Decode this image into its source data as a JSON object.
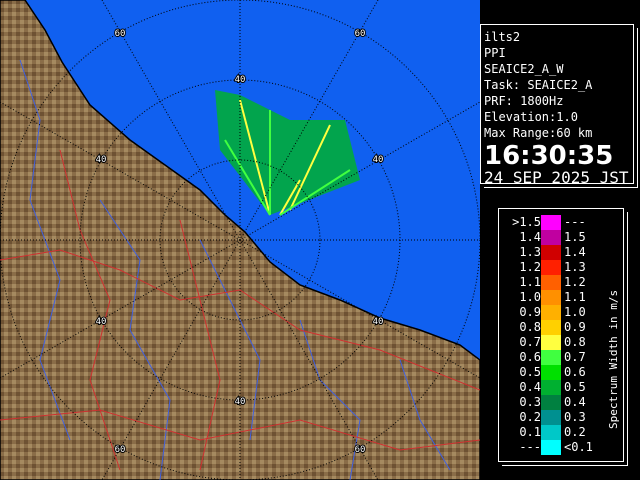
{
  "info": {
    "site": "ilts2",
    "mode": "PPI",
    "scan": "SEAICE2_A_W",
    "task": "Task: SEAICE2_A",
    "prf": "PRF: 1800Hz",
    "elevation": "Elevation:1.0",
    "max_range": "Max Range:60 km",
    "time": "16:30:35",
    "date": "24 SEP 2025 JST"
  },
  "map": {
    "ring_labels": {
      "r40": "40",
      "r60": "60"
    },
    "colors": {
      "sea": "#1060f0",
      "land": "#8a6d48",
      "coast": "#000000",
      "rivers": "#4060e0",
      "roads": "#d03030"
    }
  },
  "legend": {
    "unit": "Spectrum Width in m/s",
    "rows": [
      {
        "left": ">1.5",
        "right": "---",
        "color": "#ff00ff"
      },
      {
        "left": "1.4",
        "right": "1.5",
        "color": "#c000a0"
      },
      {
        "left": "1.3",
        "right": "1.4",
        "color": "#d00000"
      },
      {
        "left": "1.2",
        "right": "1.3",
        "color": "#ff2000"
      },
      {
        "left": "1.1",
        "right": "1.2",
        "color": "#ff6000"
      },
      {
        "left": "1.0",
        "right": "1.1",
        "color": "#ff9000"
      },
      {
        "left": "0.9",
        "right": "1.0",
        "color": "#ffb000"
      },
      {
        "left": "0.8",
        "right": "0.9",
        "color": "#ffd000"
      },
      {
        "left": "0.7",
        "right": "0.8",
        "color": "#ffff40"
      },
      {
        "left": "0.6",
        "right": "0.7",
        "color": "#40ff40"
      },
      {
        "left": "0.5",
        "right": "0.6",
        "color": "#00e000"
      },
      {
        "left": "0.4",
        "right": "0.5",
        "color": "#00b030"
      },
      {
        "left": "0.3",
        "right": "0.4",
        "color": "#008040"
      },
      {
        "left": "0.2",
        "right": "0.3",
        "color": "#009090"
      },
      {
        "left": "0.1",
        "right": "0.2",
        "color": "#00c8c8"
      },
      {
        "left": "---",
        "right": "<0.1",
        "color": "#00ffff"
      }
    ]
  }
}
